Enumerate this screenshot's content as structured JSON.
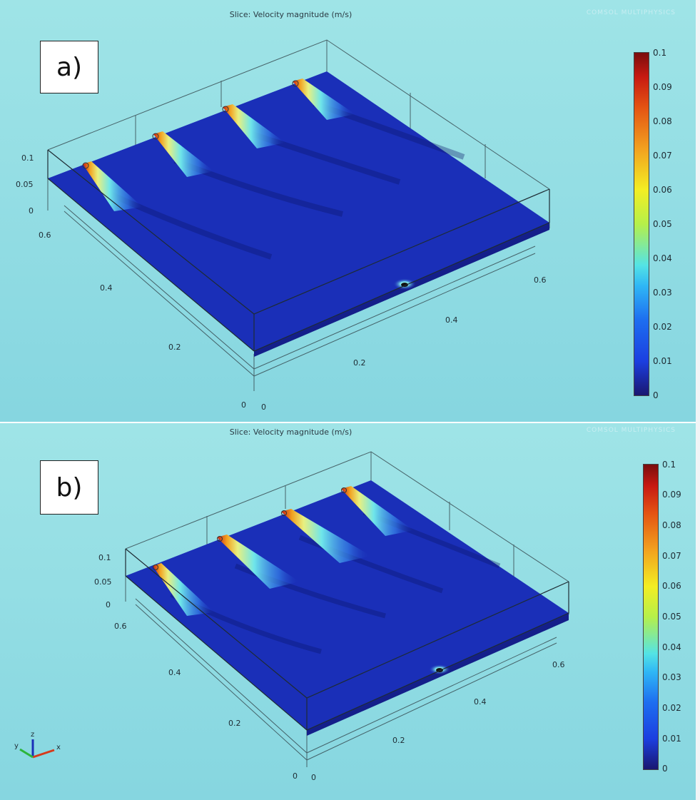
{
  "panels": [
    {
      "id": "a",
      "label": "a)",
      "title": "Slice: Velocity magnitude (m/s)",
      "watermark": "COMSOL MULTIPHYSICS",
      "colorbar_ticks": [
        "0.1",
        "0.09",
        "0.08",
        "0.07",
        "0.06",
        "0.05",
        "0.04",
        "0.03",
        "0.02",
        "0.01",
        "0"
      ],
      "z_ticks": [
        "0.1",
        "0.05",
        "0"
      ],
      "y_ticks": [
        "0.6",
        "0.4",
        "0.2",
        "0"
      ],
      "x_ticks": [
        "0",
        "0.2",
        "0.4",
        "0.6"
      ]
    },
    {
      "id": "b",
      "label": "b)",
      "title": "Slice: Velocity magnitude (m/s)",
      "watermark": "COMSOL MULTIPHYSICS",
      "colorbar_ticks": [
        "0.1",
        "0.09",
        "0.08",
        "0.07",
        "0.06",
        "0.05",
        "0.04",
        "0.03",
        "0.02",
        "0.01",
        "0"
      ],
      "z_ticks": [
        "0.1",
        "0.05",
        "0"
      ],
      "y_ticks": [
        "0.6",
        "0.4",
        "0.2",
        "0"
      ],
      "x_ticks": [
        "0",
        "0.2",
        "0.4",
        "0.6"
      ]
    }
  ],
  "axis_triad": {
    "z": "z",
    "y": "y",
    "x": "x"
  },
  "colors": {
    "background": "#8fdce3",
    "slice": "#1a2fb8",
    "jet_hot": "#c71a12"
  }
}
